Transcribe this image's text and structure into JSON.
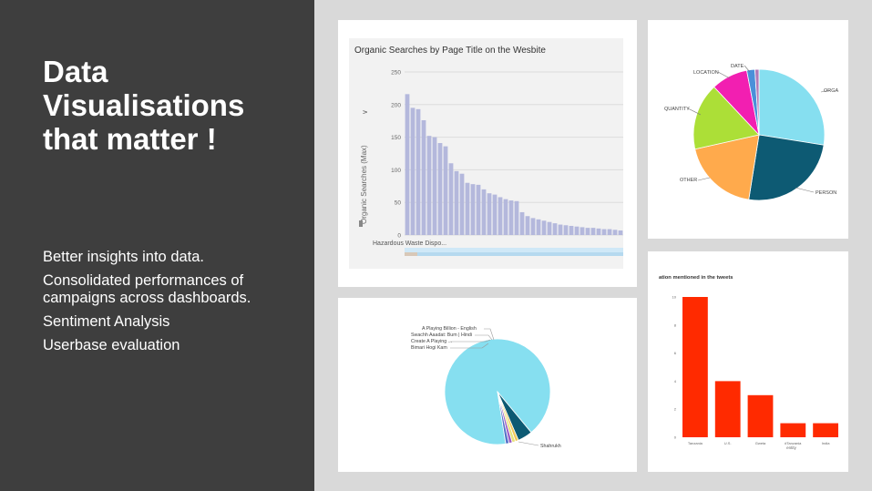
{
  "slide": {
    "title": "Data Visualisations that matter !",
    "bullets": [
      "Better insights into data.",
      "Consolidated performances of campaigns across dashboards.",
      "Sentiment Analysis",
      "Userbase evaluation"
    ]
  },
  "chart_data": [
    {
      "type": "bar",
      "title": "Organic Searches by Page Title on the Wesbite",
      "ylabel": "Organic Searches (Max)",
      "ylim": [
        0,
        250
      ],
      "yticks": [
        0,
        50,
        100,
        150,
        200,
        250
      ],
      "first_category": "Hazardous Waste Dispo...",
      "values": [
        216,
        195,
        193,
        176,
        152,
        150,
        141,
        136,
        110,
        98,
        94,
        80,
        78,
        77,
        70,
        64,
        62,
        58,
        55,
        53,
        52,
        35,
        29,
        26,
        24,
        22,
        20,
        18,
        16,
        15,
        14,
        13,
        12,
        11,
        11,
        10,
        9,
        9,
        8,
        7
      ],
      "color": "#b4b8dc",
      "grid": true
    },
    {
      "type": "pie",
      "labels": [
        "ORGA",
        "PERSON",
        "OTHER",
        "QUANTITY",
        "LOCATION",
        "DATE",
        ""
      ],
      "values": [
        27.5,
        25,
        19,
        16.5,
        9,
        2,
        1
      ],
      "colors": [
        "#86dff0",
        "#0d5a73",
        "#ffaa4c",
        "#acdf37",
        "#f21fb1",
        "#4a90d9",
        "#b07ab8"
      ]
    },
    {
      "type": "pie",
      "labels": [
        "Shahrukh",
        "",
        "Bimari Hogi Kam",
        "Create A Playing ...",
        "Swachh Aaadat: Bum | Hindi",
        "A Playing Billion - English"
      ],
      "values": [
        91.5,
        4.5,
        1,
        1,
        1,
        1
      ],
      "colors": [
        "#86dff0",
        "#0d5a73",
        "#f2c85b",
        "#e8e27a",
        "#9b5cc7",
        "#5572c8"
      ]
    },
    {
      "type": "bar",
      "title": "ation mentioned in the tweets",
      "xlabel": "entity",
      "categories": [
        "Tanzania",
        "U.S.",
        "Gweta",
        "#Tanzania",
        "India"
      ],
      "values": [
        10,
        4,
        3,
        1,
        1
      ],
      "ylim": [
        0,
        10
      ],
      "yticks": [
        0,
        2,
        4,
        6,
        8,
        10
      ],
      "color": "#ff2a00"
    }
  ]
}
